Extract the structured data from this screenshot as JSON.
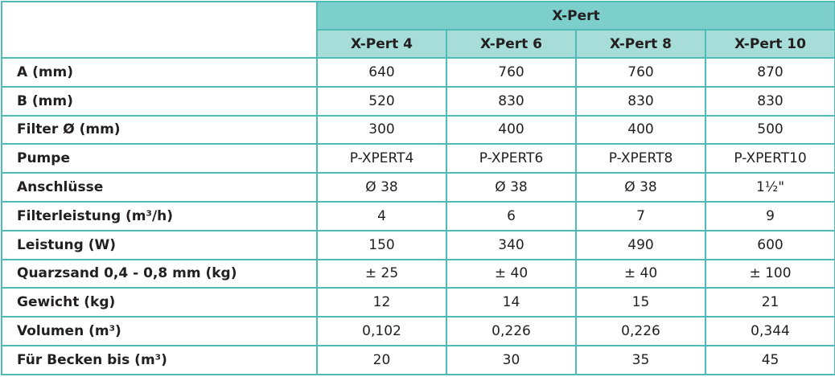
{
  "table": {
    "group_header": "X-Pert",
    "columns": [
      "X-Pert 4",
      "X-Pert 6",
      "X-Pert 8",
      "X-Pert 10"
    ],
    "rows": [
      [
        "A (mm)",
        "640",
        "760",
        "760",
        "870"
      ],
      [
        "B (mm)",
        "520",
        "830",
        "830",
        "830"
      ],
      [
        "Filter Ø (mm)",
        "300",
        "400",
        "400",
        "500"
      ],
      [
        "Pumpe",
        "P-XPERT4",
        "P-XPERT6",
        "P-XPERT8",
        "P-XPERT10"
      ],
      [
        "Anschlüsse",
        "Ø 38",
        "Ø 38",
        "Ø 38",
        "1½\""
      ],
      [
        "Filterleistung (m³/h)",
        "4",
        "6",
        "7",
        "9"
      ],
      [
        "Leistung (W)",
        "150",
        "340",
        "490",
        "600"
      ],
      [
        "Quarzsand 0,4 - 0,8 mm (kg)",
        "± 25",
        "± 40",
        "± 40",
        "± 100"
      ],
      [
        "Gewicht (kg)",
        "12",
        "14",
        "15",
        "21"
      ],
      [
        "Volumen (m³)",
        "0,102",
        "0,226",
        "0,226",
        "0,344"
      ],
      [
        "Für Becken bis (m³)",
        "20",
        "30",
        "35",
        "45"
      ]
    ]
  }
}
